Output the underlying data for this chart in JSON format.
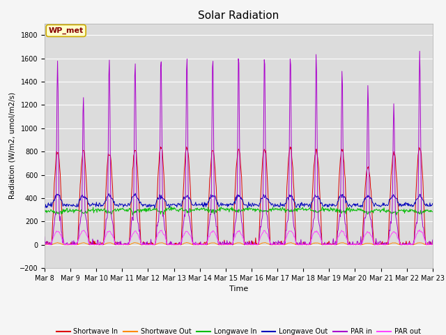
{
  "title": "Solar Radiation",
  "ylabel": "Radiation (W/m2, umol/m2/s)",
  "xlabel": "Time",
  "ylim": [
    -200,
    1900
  ],
  "yticks": [
    -200,
    0,
    200,
    400,
    600,
    800,
    1000,
    1200,
    1400,
    1600,
    1800
  ],
  "station_label": "WP_met",
  "plot_bg_color": "#dcdcdc",
  "fig_bg_color": "#f5f5f5",
  "line_colors": {
    "sw_in": "#dd0000",
    "sw_out": "#ff8800",
    "lw_in": "#00bb00",
    "lw_out": "#0000bb",
    "par_in": "#aa00cc",
    "par_out": "#ff44ff"
  },
  "legend_labels": [
    "Shortwave In",
    "Shortwave Out",
    "Longwave In",
    "Longwave Out",
    "PAR in",
    "PAR out"
  ],
  "num_days": 15,
  "start_day": 8
}
